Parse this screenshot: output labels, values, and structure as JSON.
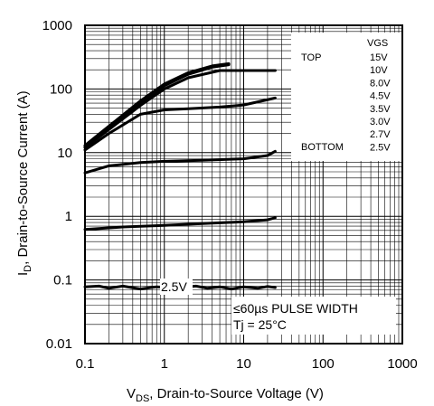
{
  "chart_data": {
    "type": "line",
    "x_scale": "log",
    "y_scale": "log",
    "xlim": [
      0.1,
      1000
    ],
    "ylim": [
      0.01,
      1000
    ],
    "grid": true,
    "xticks": [
      "0.1",
      "1",
      "10",
      "100",
      "1000"
    ],
    "yticks": [
      "0.01",
      "0.1",
      "1",
      "10",
      "100",
      "1000"
    ],
    "xlabel": {
      "main": "V",
      "sub": "DS",
      "rest": ", Drain-to-Source Voltage (V)"
    },
    "ylabel": {
      "main": "I",
      "sub": "D",
      "rest": ", Drain-to-Source Current (A)"
    },
    "legend": {
      "header": "VGS",
      "top_label": "TOP",
      "bottom_label": "BOTTOM",
      "entries": [
        "15V",
        "10V",
        "8.0V",
        "4.5V",
        "3.5V",
        "3.0V",
        "2.7V",
        "2.5V"
      ]
    },
    "series": [
      {
        "x": [
          0.1,
          0.2,
          0.5,
          1,
          2,
          4,
          6.5
        ],
        "y": [
          13,
          26,
          65,
          120,
          180,
          230,
          250
        ]
      },
      {
        "x": [
          0.1,
          0.2,
          0.5,
          1,
          2,
          4,
          6.5
        ],
        "y": [
          12.5,
          25,
          62,
          115,
          175,
          225,
          245
        ]
      },
      {
        "x": [
          0.1,
          0.2,
          0.5,
          1,
          2,
          4,
          6.5
        ],
        "y": [
          12,
          24,
          60,
          112,
          170,
          220,
          240
        ]
      },
      {
        "x": [
          0.1,
          0.2,
          0.5,
          1,
          2,
          5,
          10,
          25
        ],
        "y": [
          12,
          23,
          55,
          100,
          150,
          195,
          195,
          195
        ]
      },
      {
        "x": [
          0.1,
          0.2,
          0.5,
          1,
          2,
          5,
          10,
          25
        ],
        "y": [
          11,
          20,
          40,
          47,
          49,
          52,
          56,
          72
        ]
      },
      {
        "x": [
          0.1,
          0.2,
          0.5,
          1,
          3,
          10,
          20,
          25
        ],
        "y": [
          4.8,
          6.2,
          7.0,
          7.3,
          7.6,
          8.0,
          9.0,
          10.5
        ]
      },
      {
        "x": [
          0.1,
          0.3,
          1,
          3,
          10,
          20,
          25
        ],
        "y": [
          0.62,
          0.68,
          0.72,
          0.77,
          0.82,
          0.88,
          0.95
        ]
      },
      {
        "x": [
          0.1,
          0.15,
          0.2,
          0.3,
          0.5,
          0.8,
          1.5,
          2.5,
          3.5,
          5,
          7,
          10,
          15,
          20,
          25
        ],
        "y": [
          0.078,
          0.08,
          0.074,
          0.08,
          0.072,
          0.078,
          0.075,
          0.08,
          0.074,
          0.078,
          0.072,
          0.078,
          0.074,
          0.079,
          0.076
        ]
      }
    ],
    "annotations": {
      "curve_label": "2.5V",
      "pulse": "≤60µs PULSE WIDTH",
      "tj": "Tj = 25°C"
    }
  }
}
